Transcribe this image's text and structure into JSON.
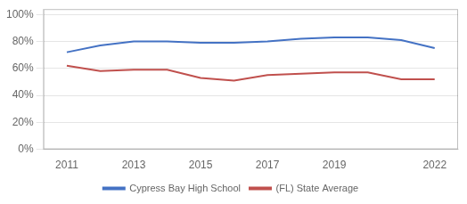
{
  "chart_data": {
    "type": "line",
    "x": [
      2011,
      2012,
      2013,
      2014,
      2015,
      2016,
      2017,
      2018,
      2019,
      2020,
      2021,
      2022
    ],
    "series": [
      {
        "name": "Cypress Bay High School",
        "color": "#4472c4",
        "values": [
          0.72,
          0.77,
          0.8,
          0.8,
          0.79,
          0.79,
          0.8,
          0.82,
          0.83,
          0.83,
          0.81,
          0.75
        ]
      },
      {
        "name": "(FL) State Average",
        "color": "#c0504d",
        "values": [
          0.62,
          0.58,
          0.59,
          0.59,
          0.53,
          0.51,
          0.55,
          0.56,
          0.57,
          0.57,
          0.52,
          0.52
        ]
      }
    ],
    "xlim": [
      2010.3,
      2022.7
    ],
    "xticks": [
      2011,
      2013,
      2015,
      2017,
      2019,
      2022
    ],
    "ylim": [
      0.0,
      1.04
    ],
    "yticks": [
      {
        "value": 0.0,
        "label": "0%"
      },
      {
        "value": 0.2,
        "label": "20%"
      },
      {
        "value": 0.4,
        "label": "40%"
      },
      {
        "value": 0.6,
        "label": "60%"
      },
      {
        "value": 0.8,
        "label": "80%"
      },
      {
        "value": 1.0,
        "label": "100%"
      }
    ],
    "grid": "y",
    "legend": "bottom"
  }
}
